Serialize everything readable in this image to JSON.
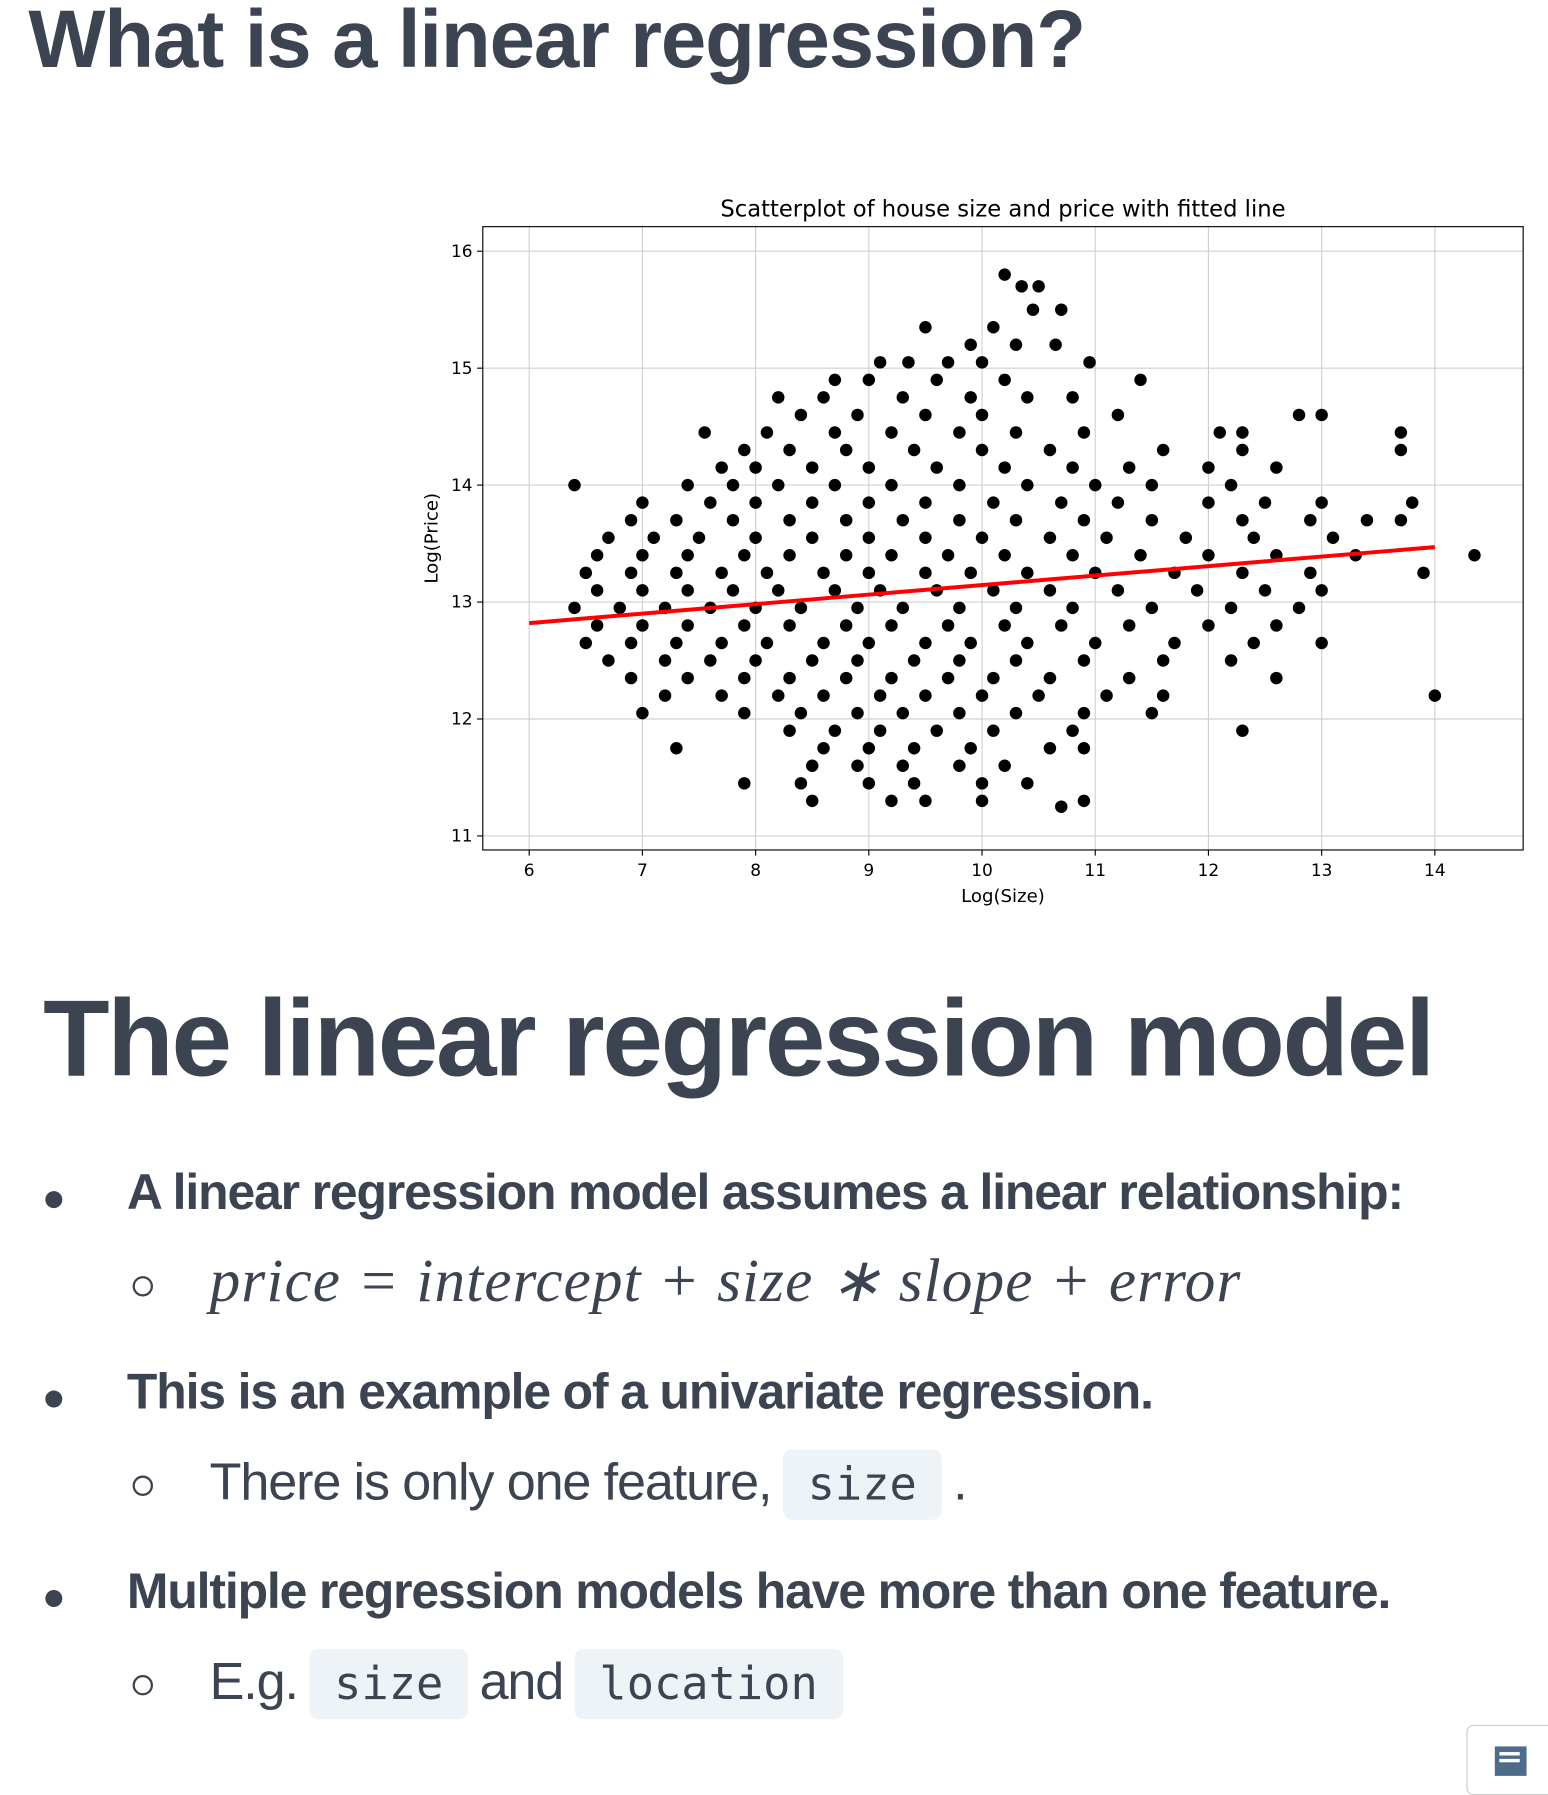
{
  "heading": "What is a linear regression?",
  "chart_data": {
    "type": "scatter",
    "title": "Scatterplot of house size and price with fitted line",
    "x_label": "Log(Size)",
    "y_label": "Log(Price)",
    "xlim": [
      5.59,
      14.78
    ],
    "ylim": [
      10.88,
      16.21
    ],
    "xticks": [
      6,
      7,
      8,
      9,
      10,
      11,
      12,
      13,
      14
    ],
    "yticks": [
      11,
      12,
      13,
      14,
      15,
      16
    ],
    "grid": true,
    "series": [
      {
        "type": "scatter",
        "color": "#000000",
        "x": [
          10.2,
          10.35,
          10.5,
          10.45,
          10.7,
          9.5,
          10.1,
          9.9,
          10.3,
          10.65,
          9.1,
          9.35,
          9.7,
          10.0,
          10.95,
          8.7,
          9.0,
          9.6,
          10.2,
          11.4,
          8.2,
          8.6,
          9.3,
          9.9,
          10.4,
          10.8,
          8.4,
          8.9,
          9.5,
          10.0,
          11.2,
          12.8,
          13.0,
          7.55,
          8.1,
          8.7,
          9.2,
          9.8,
          10.3,
          10.9,
          12.1,
          12.3,
          13.7,
          7.9,
          8.3,
          8.8,
          9.4,
          10.0,
          10.6,
          11.6,
          12.3,
          13.7,
          7.7,
          8.0,
          8.5,
          9.0,
          9.6,
          10.2,
          10.8,
          11.3,
          12.0,
          12.6,
          6.4,
          7.4,
          7.8,
          8.2,
          8.7,
          9.2,
          9.8,
          10.4,
          11.0,
          11.5,
          12.2,
          7.0,
          7.6,
          8.0,
          8.5,
          9.0,
          9.5,
          10.1,
          10.7,
          11.2,
          12.0,
          12.5,
          13.0,
          13.8,
          6.9,
          7.3,
          7.8,
          8.3,
          8.8,
          9.3,
          9.8,
          10.3,
          10.9,
          11.5,
          12.3,
          12.9,
          13.4,
          13.7,
          6.7,
          7.1,
          7.5,
          8.0,
          8.5,
          9.0,
          9.5,
          10.0,
          10.6,
          11.1,
          11.8,
          12.4,
          13.1,
          6.6,
          7.0,
          7.4,
          7.9,
          8.3,
          8.8,
          9.2,
          9.7,
          10.2,
          10.8,
          11.4,
          12.0,
          12.6,
          13.3,
          14.35,
          6.5,
          6.9,
          7.3,
          7.7,
          8.1,
          8.6,
          9.0,
          9.5,
          9.9,
          10.4,
          11.0,
          11.7,
          12.3,
          12.9,
          13.9,
          6.6,
          7.0,
          7.4,
          7.8,
          8.2,
          8.7,
          9.1,
          9.6,
          10.1,
          10.6,
          11.2,
          11.9,
          12.5,
          13.0,
          6.4,
          6.8,
          7.2,
          7.6,
          8.0,
          8.4,
          8.9,
          9.3,
          9.8,
          10.3,
          10.8,
          11.5,
          12.2,
          12.8,
          6.6,
          7.0,
          7.4,
          7.9,
          8.3,
          8.8,
          9.2,
          9.7,
          10.2,
          10.7,
          11.3,
          12.0,
          12.6,
          6.5,
          6.9,
          7.3,
          7.7,
          8.1,
          8.6,
          9.0,
          9.5,
          9.9,
          10.4,
          11.0,
          11.7,
          12.4,
          13.0,
          6.7,
          7.2,
          7.6,
          8.0,
          8.5,
          8.9,
          9.4,
          9.8,
          10.3,
          10.9,
          11.6,
          12.2,
          6.9,
          7.4,
          7.9,
          8.3,
          8.8,
          9.2,
          9.7,
          10.1,
          10.6,
          11.3,
          12.6,
          7.2,
          7.7,
          8.2,
          8.6,
          9.1,
          9.5,
          10.0,
          10.5,
          11.1,
          11.6,
          14.0,
          7.0,
          7.9,
          8.4,
          8.9,
          9.3,
          9.8,
          10.3,
          10.9,
          11.5,
          8.3,
          8.7,
          9.1,
          9.6,
          10.1,
          10.8,
          12.3,
          7.3,
          8.6,
          9.0,
          9.4,
          9.9,
          10.6,
          10.9,
          8.5,
          8.9,
          9.3,
          9.8,
          10.2,
          7.9,
          8.4,
          9.0,
          9.4,
          10.0,
          10.4,
          8.5,
          9.2,
          9.5,
          10.0,
          10.9,
          10.7
        ],
        "values": [
          15.8,
          15.7,
          15.7,
          15.5,
          15.5,
          15.35,
          15.35,
          15.2,
          15.2,
          15.2,
          15.05,
          15.05,
          15.05,
          15.05,
          15.05,
          14.9,
          14.9,
          14.9,
          14.9,
          14.9,
          14.75,
          14.75,
          14.75,
          14.75,
          14.75,
          14.75,
          14.6,
          14.6,
          14.6,
          14.6,
          14.6,
          14.6,
          14.6,
          14.45,
          14.45,
          14.45,
          14.45,
          14.45,
          14.45,
          14.45,
          14.45,
          14.45,
          14.45,
          14.3,
          14.3,
          14.3,
          14.3,
          14.3,
          14.3,
          14.3,
          14.3,
          14.3,
          14.15,
          14.15,
          14.15,
          14.15,
          14.15,
          14.15,
          14.15,
          14.15,
          14.15,
          14.15,
          14.0,
          14.0,
          14.0,
          14.0,
          14.0,
          14.0,
          14.0,
          14.0,
          14.0,
          14.0,
          14.0,
          13.85,
          13.85,
          13.85,
          13.85,
          13.85,
          13.85,
          13.85,
          13.85,
          13.85,
          13.85,
          13.85,
          13.85,
          13.85,
          13.7,
          13.7,
          13.7,
          13.7,
          13.7,
          13.7,
          13.7,
          13.7,
          13.7,
          13.7,
          13.7,
          13.7,
          13.7,
          13.7,
          13.55,
          13.55,
          13.55,
          13.55,
          13.55,
          13.55,
          13.55,
          13.55,
          13.55,
          13.55,
          13.55,
          13.55,
          13.55,
          13.4,
          13.4,
          13.4,
          13.4,
          13.4,
          13.4,
          13.4,
          13.4,
          13.4,
          13.4,
          13.4,
          13.4,
          13.4,
          13.4,
          13.4,
          13.25,
          13.25,
          13.25,
          13.25,
          13.25,
          13.25,
          13.25,
          13.25,
          13.25,
          13.25,
          13.25,
          13.25,
          13.25,
          13.25,
          13.25,
          13.1,
          13.1,
          13.1,
          13.1,
          13.1,
          13.1,
          13.1,
          13.1,
          13.1,
          13.1,
          13.1,
          13.1,
          13.1,
          13.1,
          12.95,
          12.95,
          12.95,
          12.95,
          12.95,
          12.95,
          12.95,
          12.95,
          12.95,
          12.95,
          12.95,
          12.95,
          12.95,
          12.95,
          12.8,
          12.8,
          12.8,
          12.8,
          12.8,
          12.8,
          12.8,
          12.8,
          12.8,
          12.8,
          12.8,
          12.8,
          12.8,
          12.65,
          12.65,
          12.65,
          12.65,
          12.65,
          12.65,
          12.65,
          12.65,
          12.65,
          12.65,
          12.65,
          12.65,
          12.65,
          12.65,
          12.5,
          12.5,
          12.5,
          12.5,
          12.5,
          12.5,
          12.5,
          12.5,
          12.5,
          12.5,
          12.5,
          12.5,
          12.35,
          12.35,
          12.35,
          12.35,
          12.35,
          12.35,
          12.35,
          12.35,
          12.35,
          12.35,
          12.35,
          12.2,
          12.2,
          12.2,
          12.2,
          12.2,
          12.2,
          12.2,
          12.2,
          12.2,
          12.2,
          12.2,
          12.05,
          12.05,
          12.05,
          12.05,
          12.05,
          12.05,
          12.05,
          12.05,
          12.05,
          11.9,
          11.9,
          11.9,
          11.9,
          11.9,
          11.9,
          11.9,
          11.75,
          11.75,
          11.75,
          11.75,
          11.75,
          11.75,
          11.75,
          11.6,
          11.6,
          11.6,
          11.6,
          11.6,
          11.45,
          11.45,
          11.45,
          11.45,
          11.45,
          11.45,
          11.3,
          11.3,
          11.3,
          11.3,
          11.3,
          11.25
        ]
      },
      {
        "type": "line",
        "color": "#ff0000",
        "x": [
          6,
          14
        ],
        "values": [
          12.82,
          13.47
        ]
      }
    ]
  },
  "section_title": "The linear regression model",
  "bullets": [
    {
      "text": "A linear regression model assumes a linear relationship:",
      "sub": [
        {
          "math": "price = intercept + size ∗ slope + error"
        }
      ]
    },
    {
      "text": "This is an example of a univariate regression.",
      "sub": [
        {
          "text": "There is only one feature,"
        },
        {
          "code": "size"
        },
        {
          "text": "."
        }
      ]
    },
    {
      "text": "Multiple regression models have more than one feature.",
      "sub": [
        {
          "text": "E.g."
        },
        {
          "code": "size"
        },
        {
          "text": "and"
        },
        {
          "code": "location"
        }
      ]
    }
  ]
}
